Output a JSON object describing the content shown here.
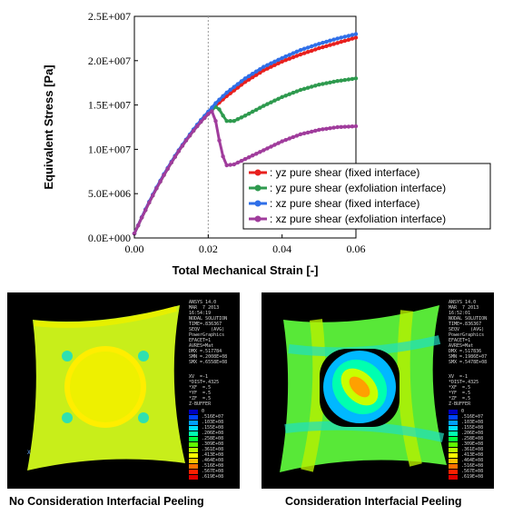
{
  "chart_data": {
    "type": "line",
    "title": "",
    "xlabel": "Total Mechanical Strain [-]",
    "ylabel": "Equivalent Stress [Pa]",
    "xlim": [
      0,
      0.06
    ],
    "ylim": [
      0,
      25000000
    ],
    "x_ticks": [
      0.0,
      0.02,
      0.04,
      0.06
    ],
    "x_tick_labels": [
      "0.00",
      "0.02",
      "0.04",
      "0.06"
    ],
    "y_ticks": [
      0,
      5000000,
      10000000,
      15000000,
      20000000,
      25000000
    ],
    "y_tick_labels": [
      "0.0E+000",
      "5.0E+006",
      "1.0E+007",
      "1.5E+007",
      "2.0E+007",
      "2.5E+007"
    ],
    "grid": "vertical dotted at x=0.02",
    "legend_placement": "bottom-right",
    "series": [
      {
        "name": ": yz pure shear (fixed interface)",
        "color": "#e8201e",
        "x": [
          0.0,
          0.002,
          0.004,
          0.006,
          0.008,
          0.01,
          0.012,
          0.014,
          0.016,
          0.018,
          0.02,
          0.022,
          0.025,
          0.03,
          0.035,
          0.04,
          0.045,
          0.05,
          0.055,
          0.06
        ],
        "y": [
          500000,
          2300000,
          4000000,
          5600000,
          7100000,
          8500000,
          9800000,
          11000000,
          12100000,
          13100000,
          14000000,
          14900000,
          16000000,
          17600000,
          18900000,
          19900000,
          20700000,
          21400000,
          22000000,
          22600000
        ]
      },
      {
        "name": ": yz pure shear (exfoliation interface)",
        "color": "#2e9a4e",
        "x": [
          0.0,
          0.002,
          0.004,
          0.006,
          0.008,
          0.01,
          0.012,
          0.014,
          0.016,
          0.018,
          0.02,
          0.022,
          0.023,
          0.024,
          0.025,
          0.027,
          0.03,
          0.035,
          0.04,
          0.045,
          0.05,
          0.055,
          0.06
        ],
        "y": [
          500000,
          2300000,
          4000000,
          5600000,
          7100000,
          8500000,
          9800000,
          11000000,
          12100000,
          13100000,
          14000000,
          14800000,
          14500000,
          13800000,
          13200000,
          13200000,
          13800000,
          14900000,
          15900000,
          16700000,
          17300000,
          17700000,
          18000000
        ]
      },
      {
        "name": ": xz pure shear (fixed interface)",
        "color": "#2f6fe8",
        "x": [
          0.0,
          0.002,
          0.004,
          0.006,
          0.008,
          0.01,
          0.012,
          0.014,
          0.016,
          0.018,
          0.02,
          0.022,
          0.025,
          0.03,
          0.035,
          0.04,
          0.045,
          0.05,
          0.055,
          0.06
        ],
        "y": [
          500000,
          2350000,
          4100000,
          5700000,
          7200000,
          8600000,
          9900000,
          11100000,
          12250000,
          13300000,
          14250000,
          15200000,
          16400000,
          18000000,
          19300000,
          20300000,
          21200000,
          21900000,
          22500000,
          23000000
        ]
      },
      {
        "name": ": xz pure shear (exfoliation interface)",
        "color": "#a03c9c",
        "x": [
          0.0,
          0.002,
          0.004,
          0.006,
          0.008,
          0.01,
          0.012,
          0.014,
          0.016,
          0.018,
          0.02,
          0.021,
          0.022,
          0.023,
          0.024,
          0.025,
          0.027,
          0.03,
          0.035,
          0.04,
          0.045,
          0.05,
          0.055,
          0.06
        ],
        "y": [
          500000,
          2300000,
          4000000,
          5600000,
          7100000,
          8500000,
          9800000,
          11000000,
          12100000,
          13100000,
          14000000,
          14300000,
          13200000,
          11000000,
          9200000,
          8200000,
          8300000,
          8900000,
          9900000,
          10900000,
          11700000,
          12200000,
          12500000,
          12600000
        ]
      }
    ]
  },
  "panels": {
    "left": {
      "caption": "No Consideration Interfacial Peeling",
      "header_text": "ANSYS 14.0\nMAR  7 2013\n16:54:19\nNODAL SOLUTION\nTIME=.836367\nSEQV    (AVG)\nPowerGraphics\nEFACET=1\nAVRES=Mat\nDMX =.517784\nSMN =.2008E+08\nSMX =.6558E+08",
      "view_text": "XV  =-1\n*DIST=.4325\n*XF  =.5\n*YF  =.5\n*ZF  =.5\nZ-BUFFER",
      "legend_labels": [
        "0",
        ".516E+07",
        ".103E+08",
        ".155E+08",
        ".206E+08",
        ".258E+08",
        ".309E+08",
        ".361E+08",
        ".413E+08",
        ".464E+08",
        ".516E+08",
        ".567E+08",
        ".619E+08"
      ]
    },
    "right": {
      "caption": "Consideration Interfacial Peeling",
      "header_text": "ANSYS 14.0\nMAR  7 2013\n16:52:01\nNODAL SOLUTION\nTIME=.836367\nSEQV    (AVG)\nPowerGraphics\nEFACET=1\nAVRES=Mat\nDMX =.517836\nSMN =.1986E+07\nSMX =.5478E+08",
      "view_text": "XV  =-1\n*DIST=.4325\n*XF  =.5\n*YF  =.5\n*ZF  =.5\nZ-BUFFER",
      "legend_labels": [
        "0",
        ".516E+07",
        ".103E+08",
        ".155E+08",
        ".206E+08",
        ".258E+08",
        ".309E+08",
        ".361E+08",
        ".413E+08",
        ".464E+08",
        ".516E+08",
        ".567E+08",
        ".619E+08"
      ]
    },
    "contour_colors": [
      "#0000c0",
      "#0044ff",
      "#00a0ff",
      "#00e0ff",
      "#00ffb0",
      "#00ff40",
      "#60ff00",
      "#b8ff00",
      "#ffff00",
      "#ffc000",
      "#ff7000",
      "#ff2000",
      "#e00000"
    ]
  }
}
